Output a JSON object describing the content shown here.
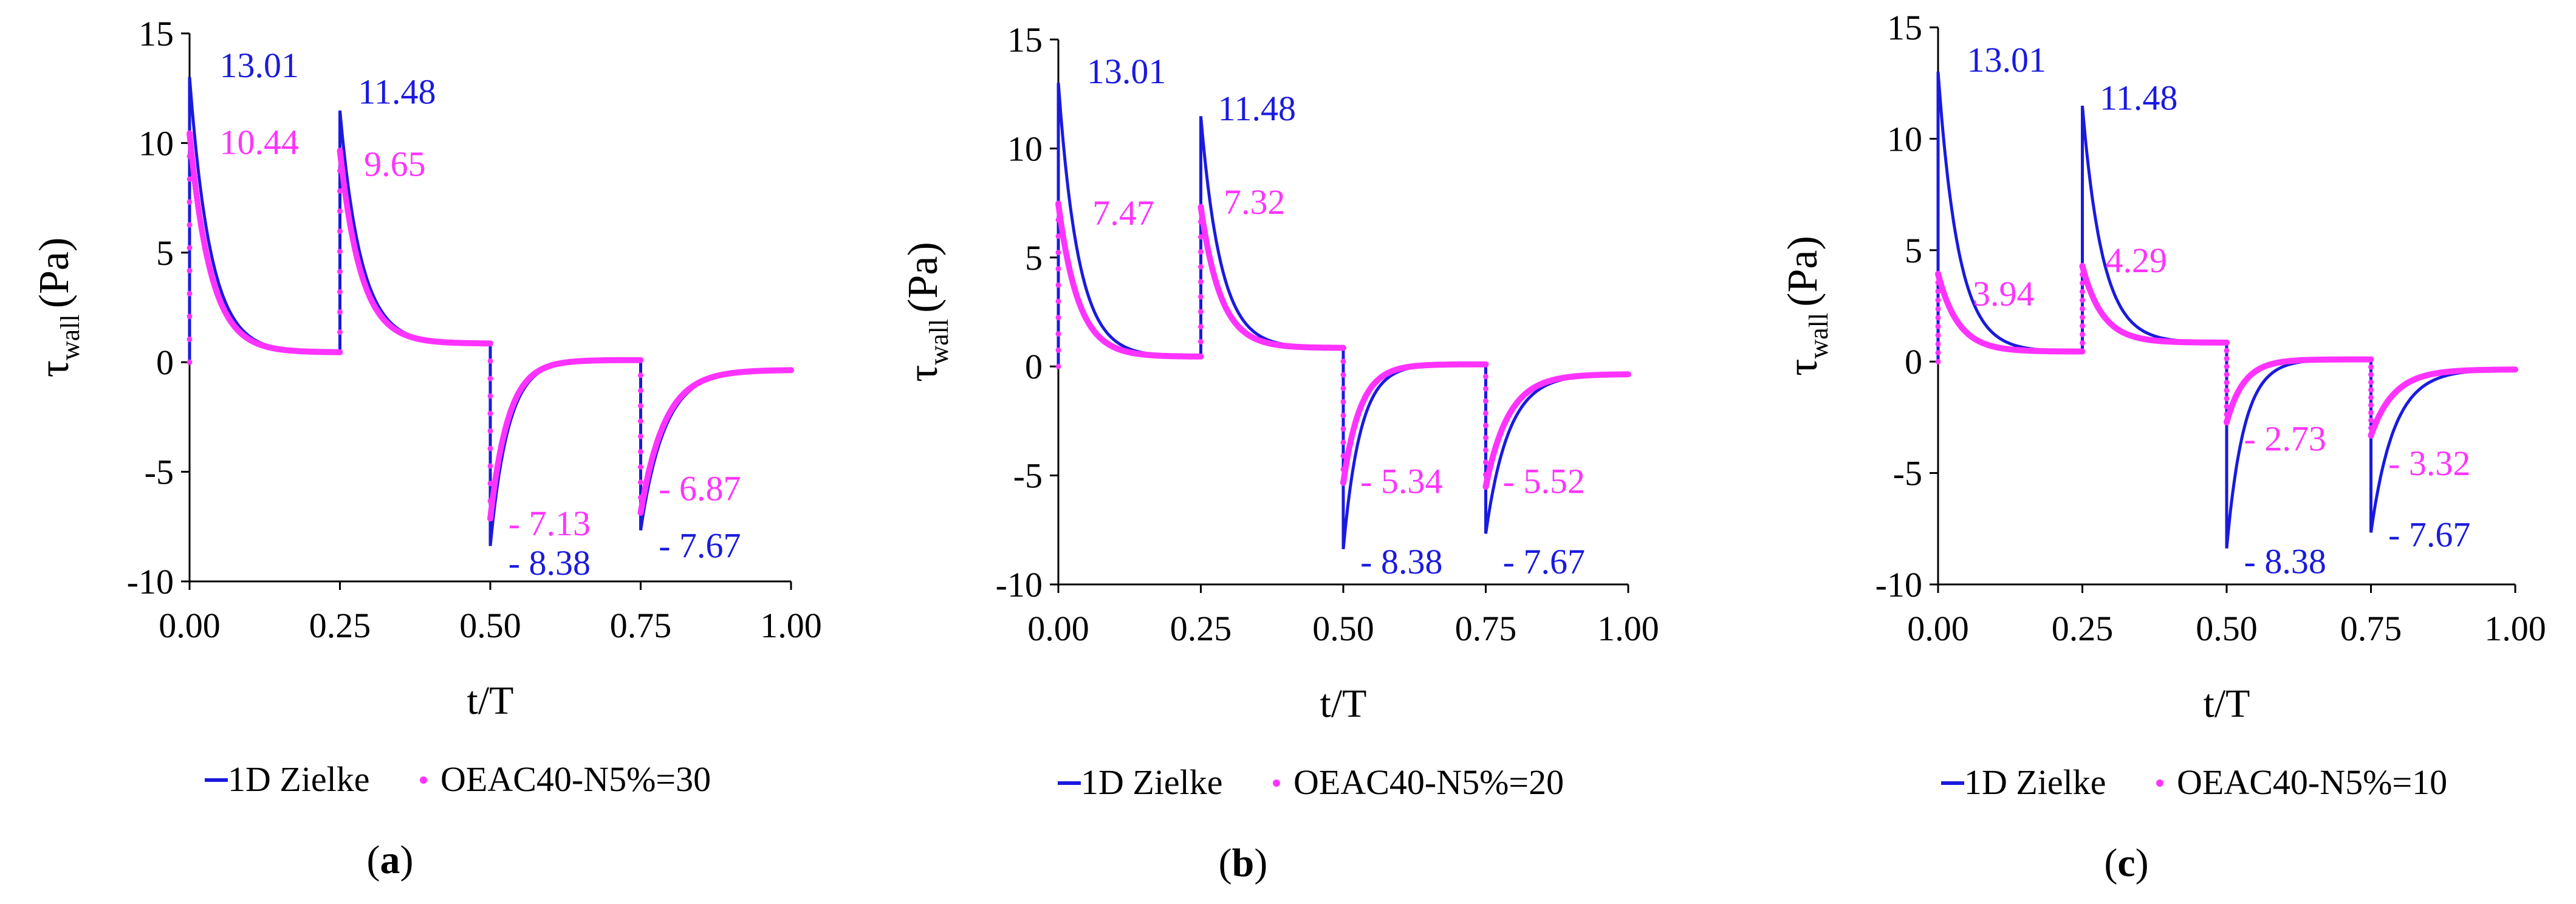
{
  "chart_data": [
    {
      "type": "line",
      "panel_label": "a",
      "xlabel": "t/T",
      "ylabel_main": "τ",
      "ylabel_sub": "wall",
      "ylabel_unit": "(Pa)",
      "xlim": [
        0,
        1
      ],
      "ylim": [
        -10,
        15
      ],
      "xticks": [
        "0.00",
        "0.25",
        "0.50",
        "0.75",
        "1.00"
      ],
      "yticks": [
        "-10",
        "-5",
        "0",
        "5",
        "10",
        "15"
      ],
      "colors": {
        "zielke": "#1a1adf",
        "model": "#ff33ff"
      },
      "legend": {
        "zielke": "1D Zielke",
        "model": "OEAC40-N5%=30"
      },
      "peaks": {
        "zielke": [
          13.01,
          11.48,
          -8.38,
          -7.67
        ],
        "model": [
          10.44,
          9.65,
          -7.13,
          -6.87
        ]
      },
      "annotations": [
        {
          "text": "13.01",
          "x": 0.05,
          "y": 13.5,
          "series": "zielke"
        },
        {
          "text": "10.44",
          "x": 0.05,
          "y": 10.0,
          "series": "model"
        },
        {
          "text": "11.48",
          "x": 0.28,
          "y": 12.3,
          "series": "zielke"
        },
        {
          "text": "9.65",
          "x": 0.29,
          "y": 9.0,
          "series": "model"
        },
        {
          "text": "- 7.13",
          "x": 0.53,
          "y": -7.4,
          "series": "model"
        },
        {
          "text": "- 8.38",
          "x": 0.53,
          "y": -9.2,
          "series": "zielke"
        },
        {
          "text": "- 6.87",
          "x": 0.78,
          "y": -5.8,
          "series": "model"
        },
        {
          "text": "- 7.67",
          "x": 0.78,
          "y": -8.4,
          "series": "zielke"
        }
      ]
    },
    {
      "type": "line",
      "panel_label": "b",
      "xlabel": "t/T",
      "ylabel_main": "τ",
      "ylabel_sub": "wall",
      "ylabel_unit": "(Pa)",
      "xlim": [
        0,
        1
      ],
      "ylim": [
        -10,
        15
      ],
      "xticks": [
        "0.00",
        "0.25",
        "0.50",
        "0.75",
        "1.00"
      ],
      "yticks": [
        "-10",
        "-5",
        "0",
        "5",
        "10",
        "15"
      ],
      "colors": {
        "zielke": "#1a1adf",
        "model": "#ff33ff"
      },
      "legend": {
        "zielke": "1D Zielke",
        "model": "OEAC40-N5%=20"
      },
      "peaks": {
        "zielke": [
          13.01,
          11.48,
          -8.38,
          -7.67
        ],
        "model": [
          7.47,
          7.32,
          -5.34,
          -5.52
        ]
      },
      "annotations": [
        {
          "text": "13.01",
          "x": 0.05,
          "y": 13.5,
          "series": "zielke"
        },
        {
          "text": "7.47",
          "x": 0.06,
          "y": 7.0,
          "series": "model"
        },
        {
          "text": "11.48",
          "x": 0.28,
          "y": 11.8,
          "series": "zielke"
        },
        {
          "text": "7.32",
          "x": 0.29,
          "y": 7.5,
          "series": "model"
        },
        {
          "text": "- 5.34",
          "x": 0.53,
          "y": -5.3,
          "series": "model"
        },
        {
          "text": "- 8.38",
          "x": 0.53,
          "y": -9.0,
          "series": "zielke"
        },
        {
          "text": "- 5.52",
          "x": 0.78,
          "y": -5.3,
          "series": "model"
        },
        {
          "text": "- 7.67",
          "x": 0.78,
          "y": -9.0,
          "series": "zielke"
        }
      ]
    },
    {
      "type": "line",
      "panel_label": "c",
      "xlabel": "t/T",
      "ylabel_main": "τ",
      "ylabel_sub": "wall",
      "ylabel_unit": "(Pa)",
      "xlim": [
        0,
        1
      ],
      "ylim": [
        -10,
        15
      ],
      "xticks": [
        "0.00",
        "0.25",
        "0.50",
        "0.75",
        "1.00"
      ],
      "yticks": [
        "-10",
        "-5",
        "0",
        "5",
        "10",
        "15"
      ],
      "colors": {
        "zielke": "#1a1adf",
        "model": "#ff33ff"
      },
      "legend": {
        "zielke": "1D Zielke",
        "model": "OEAC40-N5%=10"
      },
      "peaks": {
        "zielke": [
          13.01,
          11.48,
          -8.38,
          -7.67
        ],
        "model": [
          3.94,
          4.29,
          -2.73,
          -3.32
        ]
      },
      "annotations": [
        {
          "text": "13.01",
          "x": 0.05,
          "y": 13.5,
          "series": "zielke"
        },
        {
          "text": "3.94",
          "x": 0.06,
          "y": 3.0,
          "series": "model"
        },
        {
          "text": "11.48",
          "x": 0.28,
          "y": 11.8,
          "series": "zielke"
        },
        {
          "text": "4.29",
          "x": 0.29,
          "y": 4.5,
          "series": "model"
        },
        {
          "text": "- 2.73",
          "x": 0.53,
          "y": -3.5,
          "series": "model"
        },
        {
          "text": "- 8.38",
          "x": 0.53,
          "y": -9.0,
          "series": "zielke"
        },
        {
          "text": "- 3.32",
          "x": 0.78,
          "y": -4.6,
          "series": "model"
        },
        {
          "text": "- 7.67",
          "x": 0.78,
          "y": -7.8,
          "series": "zielke"
        }
      ]
    }
  ]
}
